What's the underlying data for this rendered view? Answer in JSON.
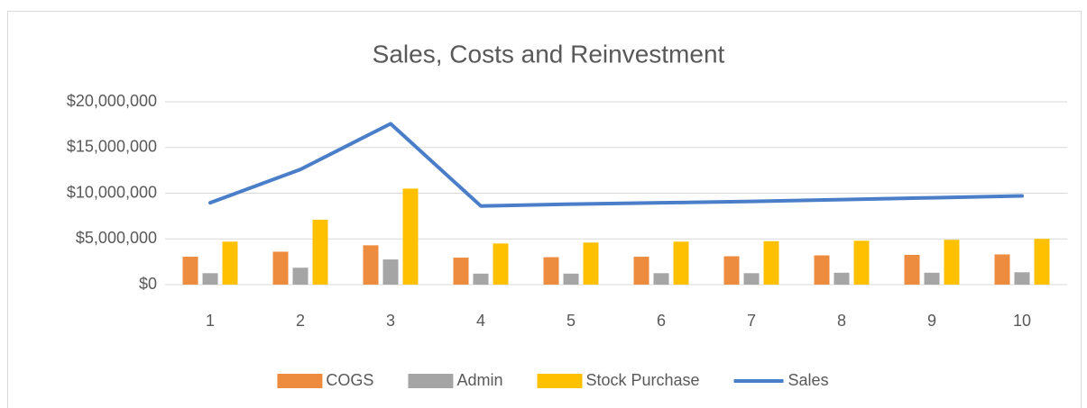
{
  "chart_data": {
    "type": "bar",
    "title": "Sales, Costs and Reinvestment",
    "categories": [
      "1",
      "2",
      "3",
      "4",
      "5",
      "6",
      "7",
      "8",
      "9",
      "10"
    ],
    "series": [
      {
        "name": "COGS",
        "color": "#ed8b3f",
        "values": [
          3050000,
          3600000,
          4300000,
          2950000,
          3000000,
          3050000,
          3100000,
          3200000,
          3250000,
          3300000
        ]
      },
      {
        "name": "Admin",
        "color": "#a5a5a5",
        "values": [
          1250000,
          1850000,
          2750000,
          1200000,
          1200000,
          1250000,
          1250000,
          1300000,
          1300000,
          1350000
        ]
      },
      {
        "name": "Stock Purchase",
        "color": "#ffc000",
        "values": [
          4700000,
          7100000,
          10500000,
          4500000,
          4600000,
          4700000,
          4750000,
          4800000,
          4900000,
          5000000
        ]
      },
      {
        "name": "Sales",
        "color": "#4a7ec8",
        "type": "line",
        "values": [
          8950000,
          12600000,
          17600000,
          8600000,
          8800000,
          8950000,
          9100000,
          9300000,
          9500000,
          9700000
        ]
      }
    ],
    "ylim": [
      0,
      20000000
    ],
    "yticks": [
      {
        "value": 0,
        "label": "$0"
      },
      {
        "value": 5000000,
        "label": "$5,000,000"
      },
      {
        "value": 10000000,
        "label": "$10,000,000"
      },
      {
        "value": 15000000,
        "label": "$15,000,000"
      },
      {
        "value": 20000000,
        "label": "$20,000,000"
      }
    ],
    "grid": true,
    "legend": "bottom"
  }
}
